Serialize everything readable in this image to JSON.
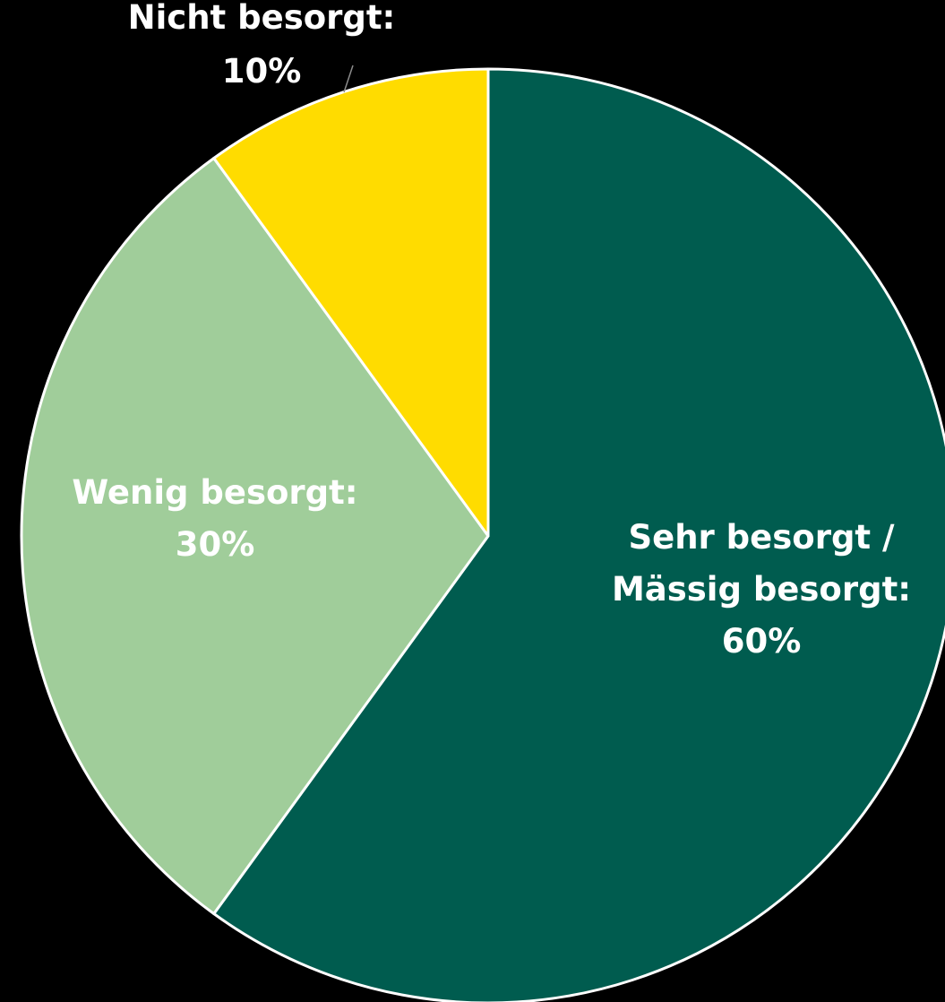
{
  "chart_data": {
    "type": "pie",
    "start_angle_deg": 0,
    "direction": "clockwise",
    "slices": [
      {
        "label_lines": [
          "Sehr besorgt /",
          "Mässig besorgt:",
          "60%"
        ],
        "value": 60,
        "color": "#005c4f"
      },
      {
        "label_lines": [
          "Wenig besorgt:",
          "30%"
        ],
        "value": 30,
        "color": "#a0cd9a"
      },
      {
        "label_lines": [
          "Nicht besorgt:",
          "10%"
        ],
        "value": 10,
        "color": "#ffdc00"
      }
    ],
    "slice_border_color": "#ffffff",
    "background_color": "#000000"
  }
}
